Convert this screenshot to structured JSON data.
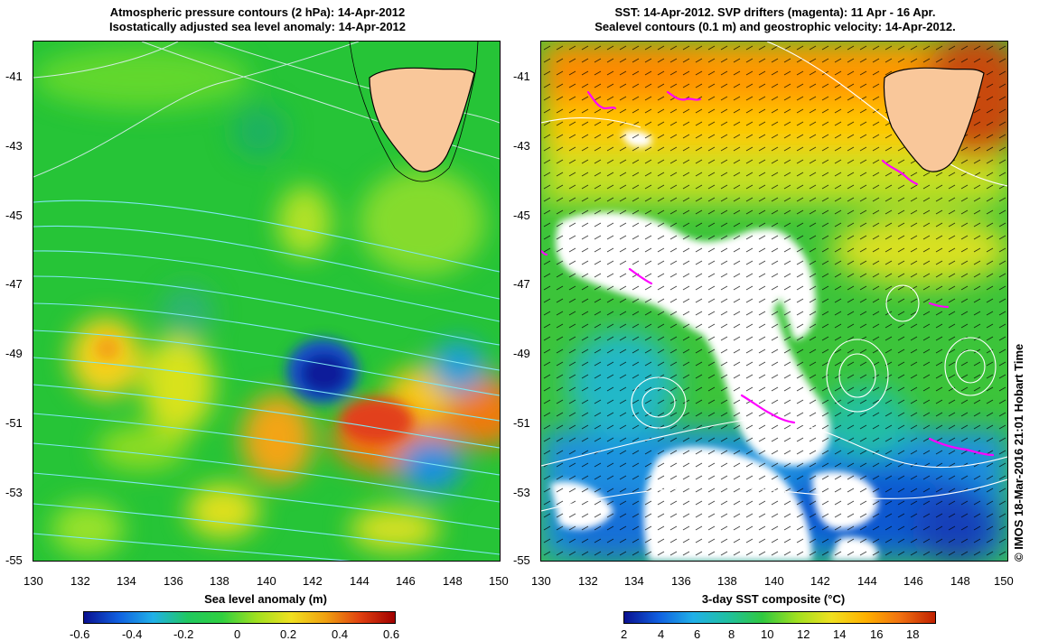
{
  "left_panel": {
    "title_line1": "Atmospheric pressure contours (2 hPa): 14-Apr-2012",
    "title_line2": "Isostatically adjusted sea level anomaly: 14-Apr-2012",
    "y_ticks": [
      "-41",
      "-43",
      "-45",
      "-47",
      "-49",
      "-51",
      "-53",
      "-55"
    ],
    "x_ticks": [
      "130",
      "132",
      "134",
      "136",
      "138",
      "140",
      "142",
      "144",
      "146",
      "148",
      "150"
    ],
    "colorbar_label": "Sea level anomaly (m)",
    "colorbar_ticks": [
      "-0.6",
      "-0.4",
      "-0.2",
      "0",
      "0.2",
      "0.4",
      "0.6"
    ]
  },
  "right_panel": {
    "title_line1": "SST: 14-Apr-2012. SVP drifters (magenta): 11 Apr - 16 Apr.",
    "title_line2": "Sealevel contours (0.1 m) and geostrophic velocity: 14-Apr-2012.",
    "y_ticks": [
      "-41",
      "-43",
      "-45",
      "-47",
      "-49",
      "-51",
      "-53",
      "-55"
    ],
    "x_ticks": [
      "130",
      "132",
      "134",
      "136",
      "138",
      "140",
      "142",
      "144",
      "146",
      "148",
      "150"
    ],
    "colorbar_label": "3-day SST composite (°C)",
    "colorbar_ticks": [
      "2",
      "4",
      "6",
      "8",
      "10",
      "12",
      "14",
      "16",
      "18"
    ]
  },
  "credit": "© IMOS 18-Mar-2016 21:01 Hobart Time",
  "colors": {
    "land": "#f9c79a",
    "drifter": "#ff00ff",
    "sla_mid": "#22c830",
    "sst_warm": "#ff9a00"
  }
}
